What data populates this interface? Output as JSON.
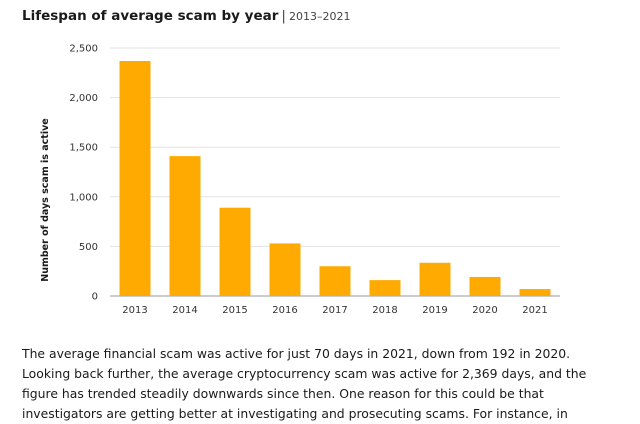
{
  "header": {
    "title": "Lifespan of average scam by year",
    "separator": "|",
    "range": "2013–2021"
  },
  "chart_data": {
    "type": "bar",
    "title": "Lifespan of average scam by year",
    "subtitle": "2013–2021",
    "xlabel": "",
    "ylabel": "Number of days scam is active",
    "categories": [
      "2013",
      "2014",
      "2015",
      "2016",
      "2017",
      "2018",
      "2019",
      "2020",
      "2021"
    ],
    "values": [
      2369,
      1410,
      890,
      530,
      300,
      160,
      335,
      192,
      70
    ],
    "ylim": [
      0,
      2500
    ],
    "yticks": [
      0,
      500,
      1000,
      1500,
      2000,
      2500
    ],
    "ytick_labels": [
      "0",
      "500",
      "1,000",
      "1,500",
      "2,000",
      "2,500"
    ],
    "grid": true,
    "legend": "none",
    "bar_color": "#FFAA00"
  },
  "paragraph": "The average financial scam was active for just 70 days in 2021, down from 192 in 2020. Looking back further, the average cryptocurrency scam was active for 2,369 days, and the figure has trended steadily downwards since then. One reason for this could be that investigators are getting better at investigating and prosecuting scams. For instance, in"
}
